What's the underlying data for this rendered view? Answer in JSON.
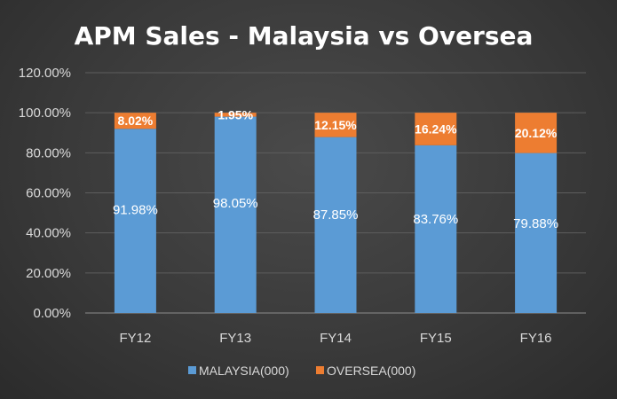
{
  "chart_data": {
    "type": "bar",
    "stacked": true,
    "title": "APM Sales - Malaysia vs Oversea",
    "categories": [
      "FY12",
      "FY13",
      "FY14",
      "FY15",
      "FY16"
    ],
    "series": [
      {
        "name": "MALAYSIA(000)",
        "color": "#5b9bd5",
        "values": [
          91.98,
          98.05,
          87.85,
          83.76,
          79.88
        ],
        "labels": [
          "91.98%",
          "98.05%",
          "87.85%",
          "83.76%",
          "79.88%"
        ]
      },
      {
        "name": "OVERSEA(000)",
        "color": "#ed7d31",
        "values": [
          8.02,
          1.95,
          12.15,
          16.24,
          20.12
        ],
        "labels": [
          "8.02%",
          "1.95%",
          "12.15%",
          "16.24%",
          "20.12%"
        ]
      }
    ],
    "ylim": [
      0,
      120
    ],
    "yticks": [
      0,
      20,
      40,
      60,
      80,
      100,
      120
    ],
    "ytick_labels": [
      "0.00%",
      "20.00%",
      "40.00%",
      "60.00%",
      "80.00%",
      "100.00%",
      "120.00%"
    ],
    "grid": true,
    "legend": "bottom"
  }
}
